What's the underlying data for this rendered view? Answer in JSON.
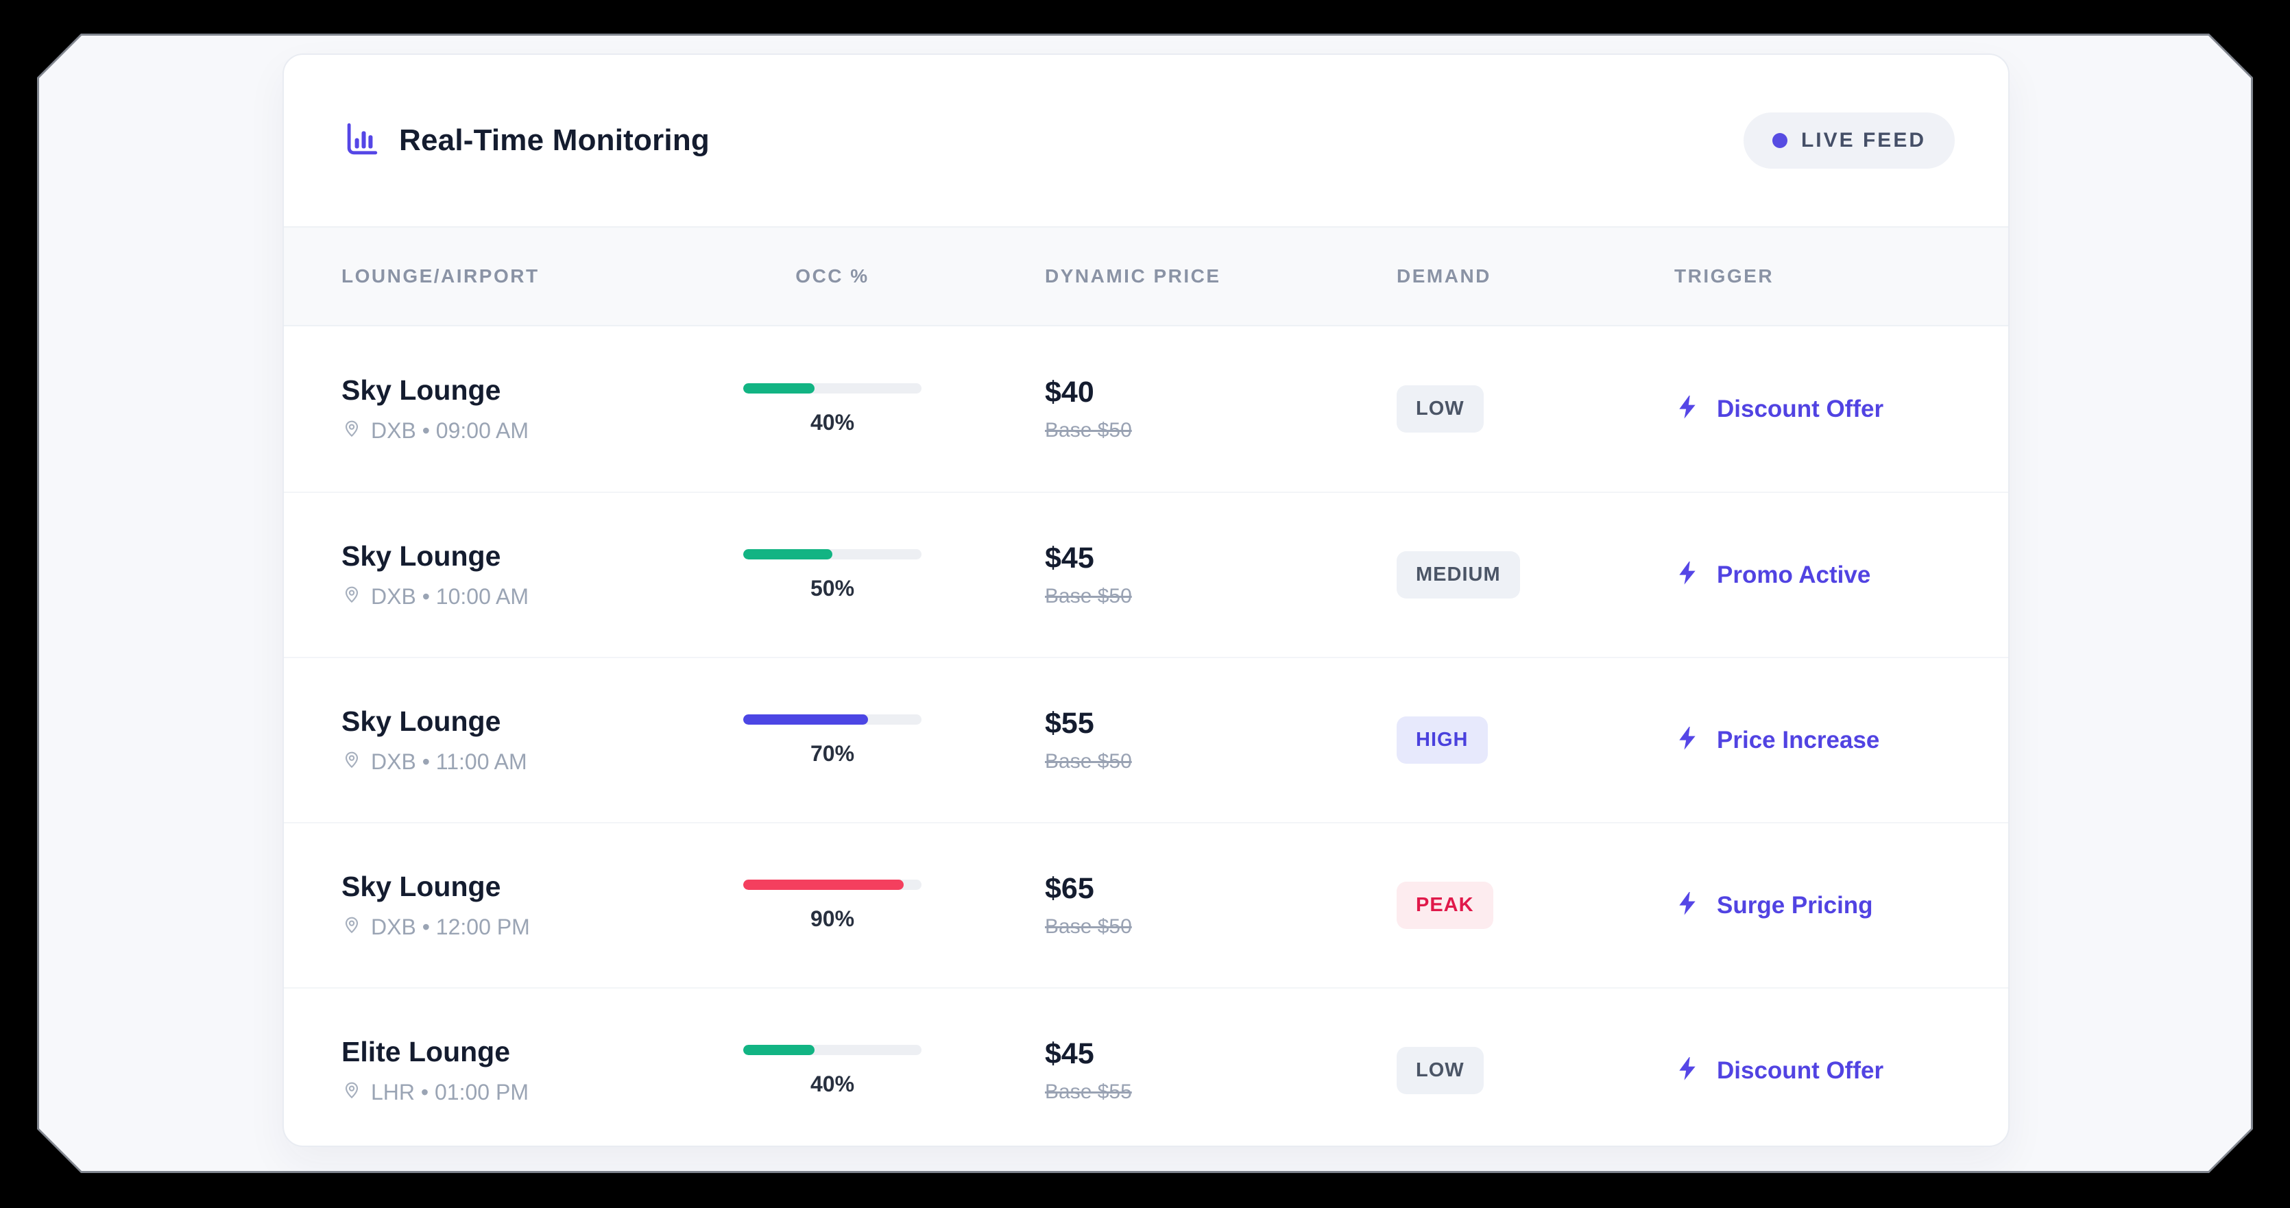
{
  "header": {
    "title": "Real-Time Monitoring",
    "title_icon": "bar-chart-icon",
    "live_feed_label": "LIVE FEED"
  },
  "table": {
    "columns": [
      "LOUNGE/AIRPORT",
      "OCC %",
      "DYNAMIC PRICE",
      "DEMAND",
      "TRIGGER"
    ],
    "rows": [
      {
        "lounge": "Sky Lounge",
        "location": "DXB • 09:00 AM",
        "occupancy_pct": 40,
        "occupancy_label": "40%",
        "bar_color": "#12b483",
        "price": "$40",
        "base_price": "Base $50",
        "demand": "LOW",
        "demand_level": "low",
        "trigger": "Discount Offer"
      },
      {
        "lounge": "Sky Lounge",
        "location": "DXB • 10:00 AM",
        "occupancy_pct": 50,
        "occupancy_label": "50%",
        "bar_color": "#12b483",
        "price": "$45",
        "base_price": "Base $50",
        "demand": "MEDIUM",
        "demand_level": "medium",
        "trigger": "Promo Active"
      },
      {
        "lounge": "Sky Lounge",
        "location": "DXB • 11:00 AM",
        "occupancy_pct": 70,
        "occupancy_label": "70%",
        "bar_color": "#4c46e4",
        "price": "$55",
        "base_price": "Base $50",
        "demand": "HIGH",
        "demand_level": "high",
        "trigger": "Price Increase"
      },
      {
        "lounge": "Sky Lounge",
        "location": "DXB • 12:00 PM",
        "occupancy_pct": 90,
        "occupancy_label": "90%",
        "bar_color": "#f43f5e",
        "price": "$65",
        "base_price": "Base $50",
        "demand": "PEAK",
        "demand_level": "peak",
        "trigger": "Surge Pricing"
      },
      {
        "lounge": "Elite Lounge",
        "location": "LHR • 01:00 PM",
        "occupancy_pct": 40,
        "occupancy_label": "40%",
        "bar_color": "#12b483",
        "price": "$45",
        "base_price": "Base $55",
        "demand": "LOW",
        "demand_level": "low",
        "trigger": "Discount Offer"
      }
    ]
  },
  "icons": {
    "bar-chart-icon": "column chart with axis",
    "map-pin-icon": "location pin outline",
    "bolt-icon": "lightning bolt",
    "live-dot": "filled circle"
  },
  "colors": {
    "accent_indigo": "#5143e2",
    "live_dot": "#574ce2",
    "bar_green": "#12b483",
    "bar_indigo": "#4c46e4",
    "bar_rose": "#f43f5e",
    "badges": {
      "low": {
        "bg": "#eef1f6",
        "fg": "#4b5566"
      },
      "medium": {
        "bg": "#eef1f6",
        "fg": "#4b5566"
      },
      "high": {
        "bg": "#e7e9fc",
        "fg": "#4a41dd"
      },
      "peak": {
        "bg": "#fdecef",
        "fg": "#e0194a"
      }
    }
  }
}
